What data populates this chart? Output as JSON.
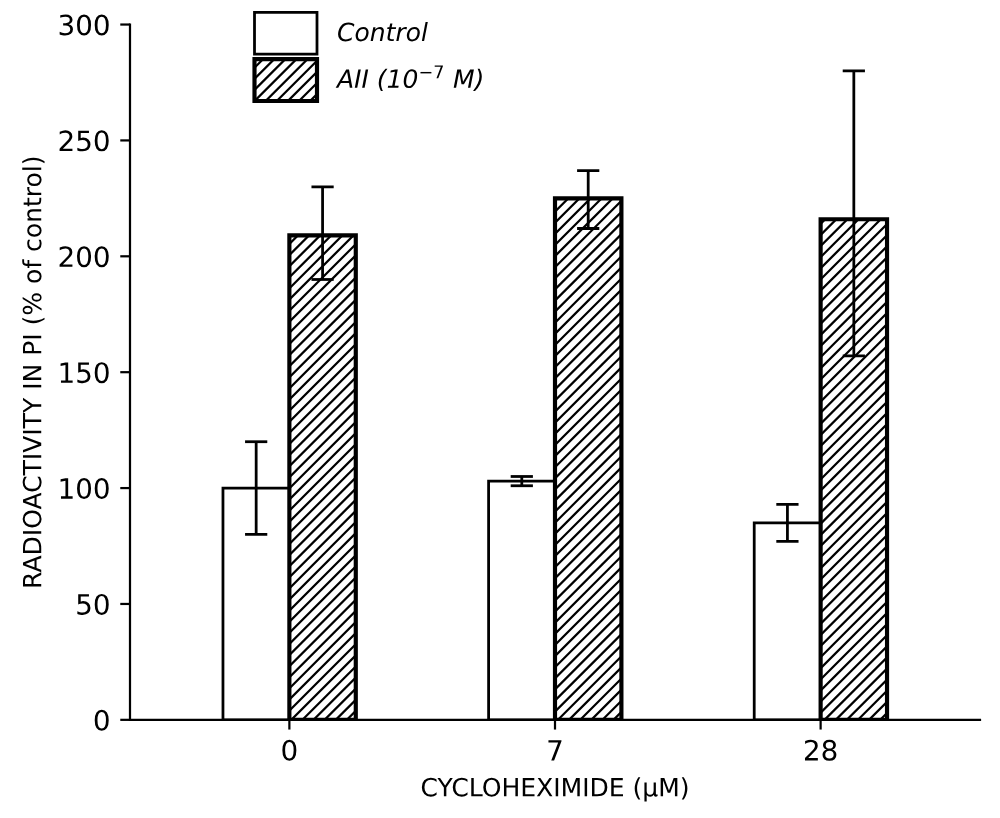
{
  "chart_data": {
    "type": "bar",
    "xlabel": "CYCLOHEXIMIDE (μM)",
    "ylabel": "RADIOACTIVITY IN PI (% of control)",
    "categories": [
      "0",
      "7",
      "28"
    ],
    "series": [
      {
        "name": "Control",
        "color": "#ffffff",
        "values": [
          100,
          103,
          85
        ],
        "errors": [
          [
            80,
            120
          ],
          [
            101,
            105
          ],
          [
            77,
            93
          ]
        ]
      },
      {
        "name": "AII (10$^{−7}$ M)",
        "color": "#000000",
        "values": [
          209,
          225,
          216
        ],
        "errors": [
          [
            190,
            230
          ],
          [
            212,
            237
          ],
          [
            157,
            280
          ]
        ]
      }
    ],
    "ylim": [
      0,
      300
    ],
    "yticks": [
      0,
      50,
      100,
      150,
      200,
      250,
      300
    ],
    "legend": "top left",
    "grid": false
  }
}
